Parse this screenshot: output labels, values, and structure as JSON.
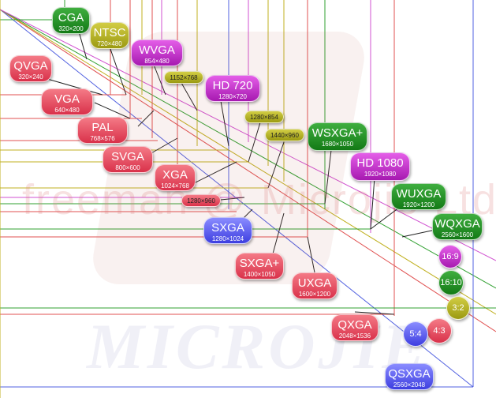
{
  "watermark": {
    "text": "freeman @ Microjie Ltd.",
    "logo": "MICROJIE"
  },
  "badges": {
    "cga": {
      "name": "CGA",
      "res": "320×200",
      "color": "green"
    },
    "ntsc": {
      "name": "NTSC",
      "res": "720×480",
      "color": "olive"
    },
    "qvga": {
      "name": "QVGA",
      "res": "320×240",
      "color": "red"
    },
    "wvga": {
      "name": "WVGA",
      "res": "854×480",
      "color": "magenta"
    },
    "r1152": {
      "res": "1152×768",
      "color": "olive"
    },
    "vga": {
      "name": "VGA",
      "res": "640×480",
      "color": "red"
    },
    "hd720": {
      "name": "HD 720",
      "res": "1280×720",
      "color": "magenta"
    },
    "r1280x854": {
      "res": "1280×854",
      "color": "olive"
    },
    "pal": {
      "name": "PAL",
      "res": "768×576",
      "color": "red"
    },
    "r1440": {
      "res": "1440×960",
      "color": "olive"
    },
    "wsxga": {
      "name": "WSXGA+",
      "res": "1680×1050",
      "color": "green"
    },
    "svga": {
      "name": "SVGA",
      "res": "800×600",
      "color": "red"
    },
    "hd1080": {
      "name": "HD 1080",
      "res": "1920×1080",
      "color": "magenta"
    },
    "xga": {
      "name": "XGA",
      "res": "1024×768",
      "color": "red"
    },
    "wuxga": {
      "name": "WUXGA",
      "res": "1920×1200",
      "color": "green"
    },
    "r1280x960": {
      "res": "1280×960",
      "color": "red"
    },
    "sxga": {
      "name": "SXGA",
      "res": "1280×1024",
      "color": "blue"
    },
    "wqxga": {
      "name": "WQXGA",
      "res": "2560×1600",
      "color": "green"
    },
    "sxgaplus": {
      "name": "SXGA+",
      "res": "1400×1050",
      "color": "red"
    },
    "uxga": {
      "name": "UXGA",
      "res": "1600×1200",
      "color": "red"
    },
    "qxga": {
      "name": "QXGA",
      "res": "2048×1536",
      "color": "red"
    },
    "qsxga": {
      "name": "QSXGA",
      "res": "2560×2048",
      "color": "blue"
    }
  },
  "ratios": {
    "r16_9": {
      "label": "16:9",
      "color": "magenta"
    },
    "r16_10": {
      "label": "16:10",
      "color": "green"
    },
    "r3_2": {
      "label": "3:2",
      "color": "olive"
    },
    "r4_3": {
      "label": "4:3",
      "color": "red"
    },
    "r5_4": {
      "label": "5:4",
      "color": "blue"
    }
  }
}
